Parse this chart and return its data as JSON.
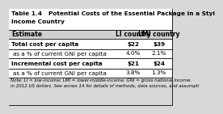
{
  "title_line1": "Table 1.4   Potential Costs of the Essential Package in a Styl",
  "title_line2": "Income Country",
  "header": [
    "Estimate",
    "LI country",
    "LMI country"
  ],
  "rows": [
    [
      "Total cost per capita",
      "$22",
      "$39"
    ],
    [
      "  as a % of current GNI per capita",
      "4.0%",
      "2.1%"
    ],
    [
      "Incremental cost per capita",
      "$21",
      "$24"
    ],
    [
      "  as a % of current GNI per capita",
      "3.8%",
      "1.3%"
    ]
  ],
  "row_bold": [
    true,
    false,
    true,
    false
  ],
  "note_line1": "Note: LI = low-income; LMI = lower-middle-income; GNI = gross national income.",
  "note_line2": "in 2012 US dollars. See annex 1A for details of methods, data sources, and assumpti",
  "header_bg": "#d0d0d0",
  "white_bg": "#ffffff",
  "outer_bg": "#d8d8d8",
  "border_color": "#000000",
  "title_fontsize": 5.3,
  "header_fontsize": 5.5,
  "data_fontsize": 5.2,
  "note_fontsize": 4.0
}
